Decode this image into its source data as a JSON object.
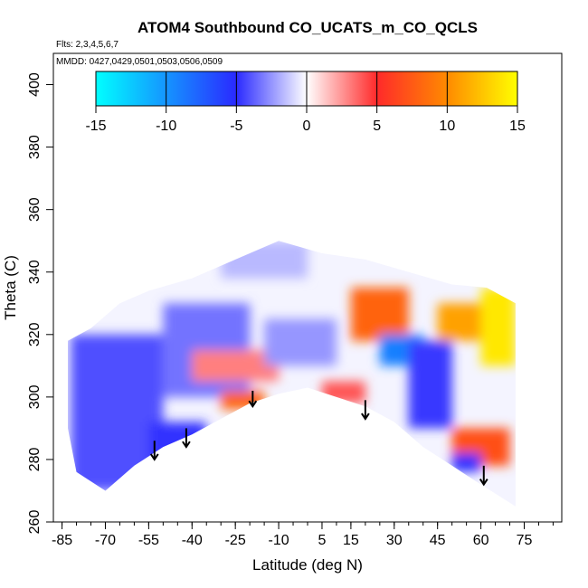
{
  "chart_data": {
    "type": "heatmap",
    "title": "ATOM4 Southbound CO_UCATS_m_CO_QCLS",
    "flights_note": "Flts: 2,3,4,5,6,7",
    "dates_note": "MMDD: 0427,0429,0501,0503,0506,0509",
    "xlabel": "Latitude (deg N)",
    "ylabel": "Theta (C)",
    "xlim": [
      -88,
      88
    ],
    "ylim": [
      260,
      410
    ],
    "x_ticks": [
      -85,
      -70,
      -55,
      -40,
      -25,
      -10,
      5,
      15,
      30,
      45,
      60,
      75
    ],
    "x_tick_labels": [
      "-85",
      "-70",
      "-55",
      "-40",
      "-25",
      "-10",
      "5",
      "15",
      "30",
      "45",
      "60",
      "75"
    ],
    "y_ticks": [
      260,
      280,
      300,
      320,
      340,
      360,
      380,
      400
    ],
    "y_tick_labels": [
      "260",
      "280",
      "300",
      "320",
      "340",
      "360",
      "380",
      "400"
    ],
    "colorbar": {
      "min": -15,
      "max": 15,
      "ticks": [
        -15,
        -10,
        -5,
        0,
        5,
        10,
        15
      ],
      "tick_labels": [
        "-15",
        "-10",
        "-5",
        "0",
        "5",
        "10",
        "15"
      ],
      "colors": [
        "#00ffff",
        "#2a2aff",
        "#ffffff",
        "#ff2a2a",
        "#ffff00"
      ]
    },
    "field_regions": [
      {
        "lat_range": [
          -82,
          -50
        ],
        "theta_range": [
          270,
          320
        ],
        "value": -5
      },
      {
        "lat_range": [
          -55,
          -35
        ],
        "theta_range": [
          278,
          292
        ],
        "value": -9
      },
      {
        "lat_range": [
          -50,
          -20
        ],
        "theta_range": [
          300,
          330
        ],
        "value": -4
      },
      {
        "lat_range": [
          -30,
          -15
        ],
        "theta_range": [
          296,
          302
        ],
        "value": 8
      },
      {
        "lat_range": [
          -40,
          -10
        ],
        "theta_range": [
          305,
          315
        ],
        "value": 3
      },
      {
        "lat_range": [
          -15,
          10
        ],
        "theta_range": [
          310,
          325
        ],
        "value": -3
      },
      {
        "lat_range": [
          5,
          20
        ],
        "theta_range": [
          298,
          305
        ],
        "value": 4
      },
      {
        "lat_range": [
          15,
          35
        ],
        "theta_range": [
          318,
          335
        ],
        "value": 8
      },
      {
        "lat_range": [
          25,
          40
        ],
        "theta_range": [
          310,
          320
        ],
        "value": -12
      },
      {
        "lat_range": [
          35,
          50
        ],
        "theta_range": [
          290,
          318
        ],
        "value": -8
      },
      {
        "lat_range": [
          45,
          60
        ],
        "theta_range": [
          318,
          330
        ],
        "value": 11
      },
      {
        "lat_range": [
          60,
          72
        ],
        "theta_range": [
          310,
          335
        ],
        "value": 14
      },
      {
        "lat_range": [
          50,
          70
        ],
        "theta_range": [
          278,
          290
        ],
        "value": 7
      },
      {
        "lat_range": [
          50,
          60
        ],
        "theta_range": [
          276,
          282
        ],
        "value": -9
      },
      {
        "lat_range": [
          -30,
          0
        ],
        "theta_range": [
          338,
          350
        ],
        "value": -2
      }
    ],
    "arrows": [
      {
        "lat": -53,
        "theta_top": 286,
        "theta_bottom": 280
      },
      {
        "lat": -42,
        "theta_top": 290,
        "theta_bottom": 284
      },
      {
        "lat": -19,
        "theta_top": 302,
        "theta_bottom": 297
      },
      {
        "lat": 20,
        "theta_top": 299,
        "theta_bottom": 293
      },
      {
        "lat": 61,
        "theta_top": 278,
        "theta_bottom": 272
      }
    ]
  }
}
